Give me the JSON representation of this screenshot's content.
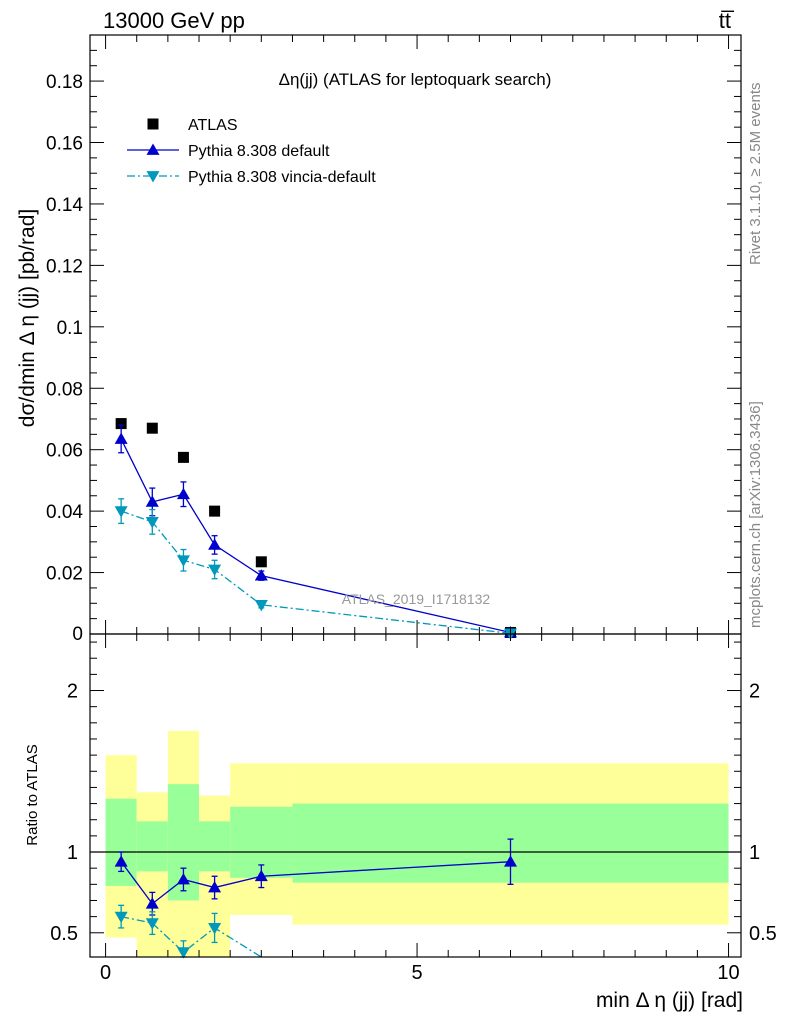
{
  "header": {
    "energy_label": "13000 GeV pp",
    "process_label": "tt̅"
  },
  "side_labels": {
    "rivet": "Rivet 3.1.10, ≥ 2.5M events",
    "mcplots": "mcplots.cern.ch [arXiv:1306.3436]"
  },
  "watermark": "ATLAS_2019_I1718132",
  "chart_data": [
    {
      "type": "scatter",
      "title": "Δη(jj) (ATLAS for leptoquark search)",
      "ylabel": "dσ/dmin Δ η (jj) [pb/rad]",
      "xlabel": "",
      "xlim": [
        -0.25,
        10.2
      ],
      "ylim": [
        0,
        0.195
      ],
      "y_ticks": [
        0.02,
        0.04,
        0.06,
        0.08,
        0.1,
        0.12,
        0.14,
        0.16,
        0.18
      ],
      "y_tick_labels": [
        "0.02",
        "0.04",
        "0.06",
        "0.08",
        "0.1",
        "0.12",
        "0.14",
        "0.16",
        "0.18"
      ],
      "y_zero_label": "0",
      "grid": false,
      "legend_position": "top-left",
      "series": [
        {
          "name": "ATLAS",
          "color": "#000000",
          "marker": "square",
          "x": [
            0.25,
            0.75,
            1.25,
            1.75,
            2.5,
            6.5
          ],
          "y": [
            0.0685,
            0.067,
            0.0575,
            0.04,
            0.0235,
            0.0005
          ]
        },
        {
          "name": "Pythia 8.308 default",
          "color": "#0000cc",
          "marker": "triangle-up",
          "line": "solid",
          "x": [
            0.25,
            0.75,
            1.25,
            1.75,
            2.5,
            6.5
          ],
          "y": [
            0.0635,
            0.043,
            0.0455,
            0.029,
            0.019,
            0.0005
          ],
          "yerr": [
            0.0045,
            0.0045,
            0.004,
            0.003,
            0.0015,
            0.0001
          ]
        },
        {
          "name": "Pythia 8.308 vincia-default",
          "color": "#0099bb",
          "marker": "triangle-down",
          "line": "dash-dot",
          "x": [
            0.25,
            0.75,
            1.25,
            1.75,
            2.5,
            6.5
          ],
          "y": [
            0.04,
            0.0365,
            0.024,
            0.021,
            0.0095,
            0.0002
          ],
          "yerr": [
            0.004,
            0.004,
            0.0035,
            0.003,
            0.001,
            0.0001
          ]
        }
      ]
    },
    {
      "type": "scatter",
      "title": "",
      "ylabel": "Ratio to ATLAS",
      "xlabel": "min Δ η (jj) [rad]",
      "xlim": [
        -0.25,
        10.2
      ],
      "ylim": [
        0.35,
        2.35
      ],
      "x_ticks": [
        0,
        5,
        10
      ],
      "x_tick_labels": [
        "0",
        "5",
        "10"
      ],
      "y_ticks": [
        0.5,
        1,
        2
      ],
      "y_tick_labels": [
        "0.5",
        "1",
        "2"
      ],
      "reference_line": 1,
      "uncertainty_bands": [
        {
          "x0": 0.0,
          "x1": 0.5,
          "yellow": [
            0.47,
            1.6
          ],
          "green": [
            0.79,
            1.33
          ]
        },
        {
          "x0": 0.5,
          "x1": 1.0,
          "yellow": [
            0.35,
            1.37
          ],
          "green": [
            0.88,
            1.19
          ]
        },
        {
          "x0": 1.0,
          "x1": 1.5,
          "yellow": [
            0.35,
            1.75
          ],
          "green": [
            0.7,
            1.42
          ]
        },
        {
          "x0": 1.5,
          "x1": 2.0,
          "yellow": [
            0.35,
            1.35
          ],
          "green": [
            0.88,
            1.19
          ]
        },
        {
          "x0": 2.0,
          "x1": 3.0,
          "yellow": [
            0.61,
            1.55
          ],
          "green": [
            0.84,
            1.28
          ]
        },
        {
          "x0": 3.0,
          "x1": 10.0,
          "yellow": [
            0.55,
            1.55
          ],
          "green": [
            0.81,
            1.3
          ]
        }
      ],
      "series": [
        {
          "name": "Pythia 8.308 default",
          "color": "#0000cc",
          "marker": "triangle-up",
          "line": "solid",
          "x": [
            0.25,
            0.75,
            1.25,
            1.75,
            2.5,
            6.5
          ],
          "y": [
            0.94,
            0.68,
            0.83,
            0.78,
            0.85,
            0.94
          ],
          "yerr": [
            0.06,
            0.07,
            0.07,
            0.07,
            0.07,
            0.14
          ]
        },
        {
          "name": "Pythia 8.308 vincia-default",
          "color": "#0099bb",
          "marker": "triangle-down",
          "line": "dash-dot",
          "x": [
            0.25,
            0.75,
            1.25,
            1.75,
            2.5
          ],
          "y": [
            0.6,
            0.56,
            0.38,
            0.53,
            0.35
          ],
          "yerr": [
            0.07,
            0.07,
            0.07,
            0.09,
            0.0
          ]
        }
      ]
    }
  ]
}
